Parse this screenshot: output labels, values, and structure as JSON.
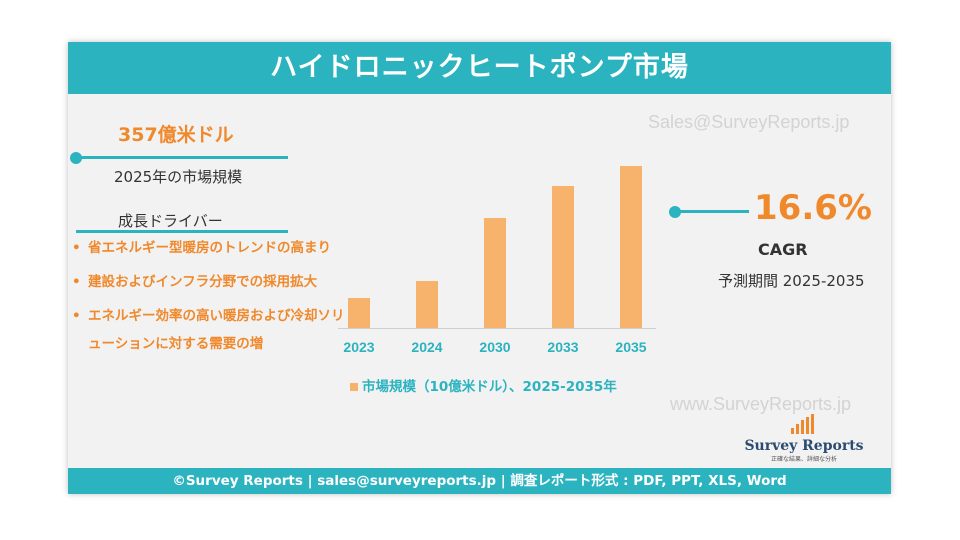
{
  "title": "ハイドロニックヒートポンプ市場",
  "market_value": "357億米ドル",
  "market_value_label": "2025年の市場規模",
  "drivers_title": "成長ドライバー",
  "drivers": [
    "省エネルギー型暖房のトレンドの高まり",
    "建設およびインフラ分野での採用拡大",
    "エネルギー効率の高い暖房および冷却ソリューションに対する需要の増"
  ],
  "cagr_value": "16.6%",
  "cagr_label": "CAGR",
  "forecast_period": "予測期間 2025-2035",
  "watermark_top": "Sales@SurveyReports.jp",
  "watermark_bottom": "www.SurveyReports.jp",
  "logo": {
    "name": "Survey Reports",
    "tagline": "正確な結果、詳細な分析"
  },
  "footer": "©Survey Reports | sales@surveyreports.jp |  調査レポート形式 : PDF, PPT, XLS, Word",
  "colors": {
    "teal": "#2bb3c0",
    "orange": "#f0892c",
    "bar": "#f7b26b"
  },
  "chart_data": {
    "type": "bar",
    "categories": [
      "2023",
      "2024",
      "2030",
      "2033",
      "2035"
    ],
    "values": [
      30,
      47,
      110,
      142,
      162
    ],
    "legend": "市場規模（10億米ドル）、2025-2035年",
    "ylim": [
      0,
      170
    ],
    "grid": false,
    "legend_position": "bottom"
  }
}
